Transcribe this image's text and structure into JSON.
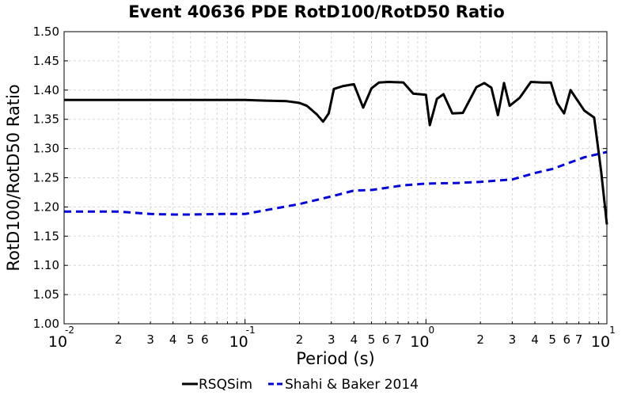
{
  "chart_data": {
    "type": "line",
    "title": "Event 40636 PDE RotD100/RotD50 Ratio",
    "xlabel": "Period (s)",
    "ylabel": "RotD100/RotD50 Ratio",
    "xscale": "log",
    "xlim": [
      0.01,
      10
    ],
    "ylim": [
      1.0,
      1.5
    ],
    "yticks": [
      "1.00",
      "1.05",
      "1.10",
      "1.15",
      "1.20",
      "1.25",
      "1.30",
      "1.35",
      "1.40",
      "1.45",
      "1.50"
    ],
    "xticks_major": [
      {
        "value": 0.01,
        "base": "10",
        "exp": "-2"
      },
      {
        "value": 0.1,
        "base": "10",
        "exp": "-1"
      },
      {
        "value": 1,
        "base": "10",
        "exp": "0"
      },
      {
        "value": 10,
        "base": "10",
        "exp": "1"
      }
    ],
    "xticks_minor": [
      {
        "value": 0.02,
        "label": "2"
      },
      {
        "value": 0.03,
        "label": "3"
      },
      {
        "value": 0.04,
        "label": "4"
      },
      {
        "value": 0.05,
        "label": "5"
      },
      {
        "value": 0.06,
        "label": "6"
      },
      {
        "value": 0.2,
        "label": "2"
      },
      {
        "value": 0.3,
        "label": "3"
      },
      {
        "value": 0.4,
        "label": "4"
      },
      {
        "value": 0.5,
        "label": "5"
      },
      {
        "value": 0.6,
        "label": "6"
      },
      {
        "value": 0.7,
        "label": "7"
      },
      {
        "value": 2,
        "label": "2"
      },
      {
        "value": 3,
        "label": "3"
      },
      {
        "value": 4,
        "label": "4"
      },
      {
        "value": 5,
        "label": "5"
      },
      {
        "value": 6,
        "label": "6"
      },
      {
        "value": 7,
        "label": "7"
      }
    ],
    "grid": true,
    "legend_position": "bottom-center",
    "series": [
      {
        "name": "RSQSim",
        "color": "#000000",
        "dash": "solid",
        "points": [
          [
            0.01,
            1.383
          ],
          [
            0.02,
            1.383
          ],
          [
            0.05,
            1.383
          ],
          [
            0.1,
            1.383
          ],
          [
            0.13,
            1.382
          ],
          [
            0.17,
            1.381
          ],
          [
            0.2,
            1.378
          ],
          [
            0.22,
            1.373
          ],
          [
            0.25,
            1.358
          ],
          [
            0.27,
            1.346
          ],
          [
            0.29,
            1.36
          ],
          [
            0.31,
            1.402
          ],
          [
            0.35,
            1.407
          ],
          [
            0.4,
            1.41
          ],
          [
            0.45,
            1.37
          ],
          [
            0.5,
            1.403
          ],
          [
            0.55,
            1.413
          ],
          [
            0.62,
            1.414
          ],
          [
            0.75,
            1.413
          ],
          [
            0.85,
            1.394
          ],
          [
            1.0,
            1.392
          ],
          [
            1.05,
            1.34
          ],
          [
            1.15,
            1.385
          ],
          [
            1.25,
            1.393
          ],
          [
            1.4,
            1.36
          ],
          [
            1.6,
            1.361
          ],
          [
            1.9,
            1.405
          ],
          [
            2.1,
            1.412
          ],
          [
            2.3,
            1.404
          ],
          [
            2.5,
            1.357
          ],
          [
            2.7,
            1.412
          ],
          [
            2.9,
            1.373
          ],
          [
            3.3,
            1.387
          ],
          [
            3.8,
            1.414
          ],
          [
            4.4,
            1.413
          ],
          [
            4.9,
            1.413
          ],
          [
            5.3,
            1.378
          ],
          [
            5.8,
            1.36
          ],
          [
            6.3,
            1.4
          ],
          [
            7.5,
            1.365
          ],
          [
            8.5,
            1.353
          ],
          [
            9.3,
            1.26
          ],
          [
            10.0,
            1.17
          ]
        ]
      },
      {
        "name": "Shahi & Baker 2014",
        "color": "#0000dd",
        "dash": "dashed",
        "points": [
          [
            0.01,
            1.192
          ],
          [
            0.02,
            1.192
          ],
          [
            0.03,
            1.188
          ],
          [
            0.04,
            1.187
          ],
          [
            0.05,
            1.187
          ],
          [
            0.075,
            1.188
          ],
          [
            0.1,
            1.188
          ],
          [
            0.15,
            1.198
          ],
          [
            0.2,
            1.205
          ],
          [
            0.3,
            1.218
          ],
          [
            0.4,
            1.228
          ],
          [
            0.5,
            1.229
          ],
          [
            0.75,
            1.237
          ],
          [
            1.0,
            1.24
          ],
          [
            1.5,
            1.241
          ],
          [
            2.0,
            1.243
          ],
          [
            3.0,
            1.247
          ],
          [
            4.0,
            1.258
          ],
          [
            5.0,
            1.265
          ],
          [
            7.5,
            1.285
          ],
          [
            10.0,
            1.294
          ]
        ]
      }
    ]
  }
}
